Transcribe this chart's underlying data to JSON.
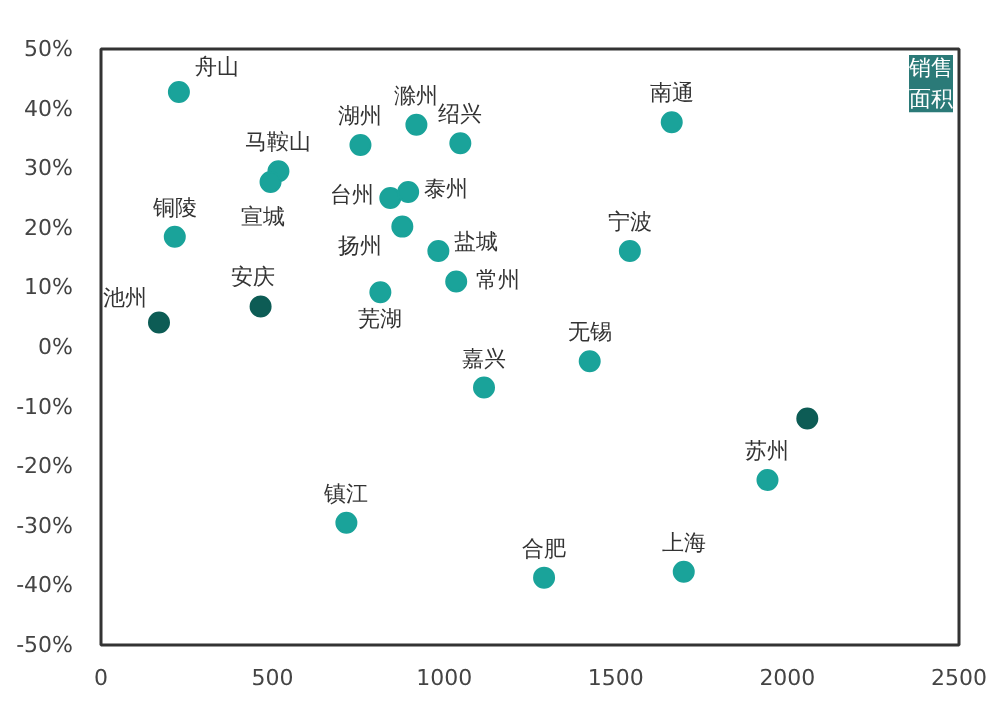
{
  "chart_data": {
    "type": "scatter",
    "marker": "circle",
    "grid": false,
    "x": [
      227,
      517,
      494,
      756,
      919,
      1047,
      843,
      895,
      878,
      814,
      983,
      1035,
      169,
      465,
      215,
      1663,
      1541,
      1116,
      1424,
      2058,
      1942,
      715,
      1291,
      1698
    ],
    "values": [
      42.8,
      29.5,
      27.7,
      33.9,
      37.3,
      34.2,
      25,
      26,
      20.2,
      9.2,
      16.1,
      11,
      4.1,
      6.8,
      18.5,
      37.7,
      16.1,
      -6.8,
      -2.4,
      -12,
      -22.3,
      -29.5,
      -38.7,
      -37.7
    ],
    "colors": [
      "#1aa39a",
      "#1aa39a",
      "#1aa39a",
      "#1aa39a",
      "#1aa39a",
      "#1aa39a",
      "#1aa39a",
      "#1aa39a",
      "#1aa39a",
      "#1aa39a",
      "#1aa39a",
      "#1aa39a",
      "#0d5c55",
      "#0d5c55",
      "#1aa39a",
      "#1aa39a",
      "#1aa39a",
      "#1aa39a",
      "#1aa39a",
      "#0d5c55",
      "#1aa39a",
      "#1aa39a",
      "#1aa39a",
      "#1aa39a"
    ],
    "xlim": [
      0,
      2500
    ],
    "ylim": [
      -50,
      50
    ],
    "xticks": [
      0,
      500,
      1000,
      1500,
      2000,
      2500
    ],
    "yticks": [
      {
        "value": -50,
        "label": "-50%"
      },
      {
        "value": -40,
        "label": "-40%"
      },
      {
        "value": -30,
        "label": "-30%"
      },
      {
        "value": -20,
        "label": "-20%"
      },
      {
        "value": -10,
        "label": "-10%"
      },
      {
        "value": 0,
        "label": "0%"
      },
      {
        "value": 10,
        "label": "10%"
      },
      {
        "value": 20,
        "label": "20%"
      },
      {
        "value": 30,
        "label": "30%"
      },
      {
        "value": 40,
        "label": "40%"
      },
      {
        "value": 50,
        "label": "50%"
      }
    ],
    "ylabel": "销售面积",
    "annotations": [
      {
        "text": "舟山",
        "x": 227,
        "y": 42.8
      },
      {
        "text": "马鞍山",
        "x": 517,
        "y": 29.5
      },
      {
        "text": "宣城",
        "x": 494,
        "y": 27.7
      },
      {
        "text": "湖州",
        "x": 756,
        "y": 33.9
      },
      {
        "text": "滁州",
        "x": 919,
        "y": 37.3
      },
      {
        "text": "绍兴",
        "x": 1047,
        "y": 34.2
      },
      {
        "text": "台州",
        "x": 843,
        "y": 25
      },
      {
        "text": "泰州",
        "x": 895,
        "y": 26
      },
      {
        "text": "扬州",
        "x": 878,
        "y": 20.2
      },
      {
        "text": "芜湖",
        "x": 814,
        "y": 9.2
      },
      {
        "text": "盐城",
        "x": 983,
        "y": 16.1
      },
      {
        "text": "常州",
        "x": 1035,
        "y": 11
      },
      {
        "text": "池州",
        "x": 169,
        "y": 4.1
      },
      {
        "text": "安庆",
        "x": 465,
        "y": 6.8
      },
      {
        "text": "铜陵",
        "x": 215,
        "y": 18.5
      },
      {
        "text": "南通",
        "x": 1663,
        "y": 37.7
      },
      {
        "text": "宁波",
        "x": 1541,
        "y": 16.1
      },
      {
        "text": "嘉兴",
        "x": 1116,
        "y": -6.8
      },
      {
        "text": "无锡",
        "x": 1424,
        "y": -2.4
      },
      {
        "text": "苏州",
        "x": 1942,
        "y": -22.3
      },
      {
        "text": "镇江",
        "x": 715,
        "y": -29.5
      },
      {
        "text": "合肥",
        "x": 1291,
        "y": -38.7
      },
      {
        "text": "上海",
        "x": 1698,
        "y": -37.7
      }
    ]
  }
}
